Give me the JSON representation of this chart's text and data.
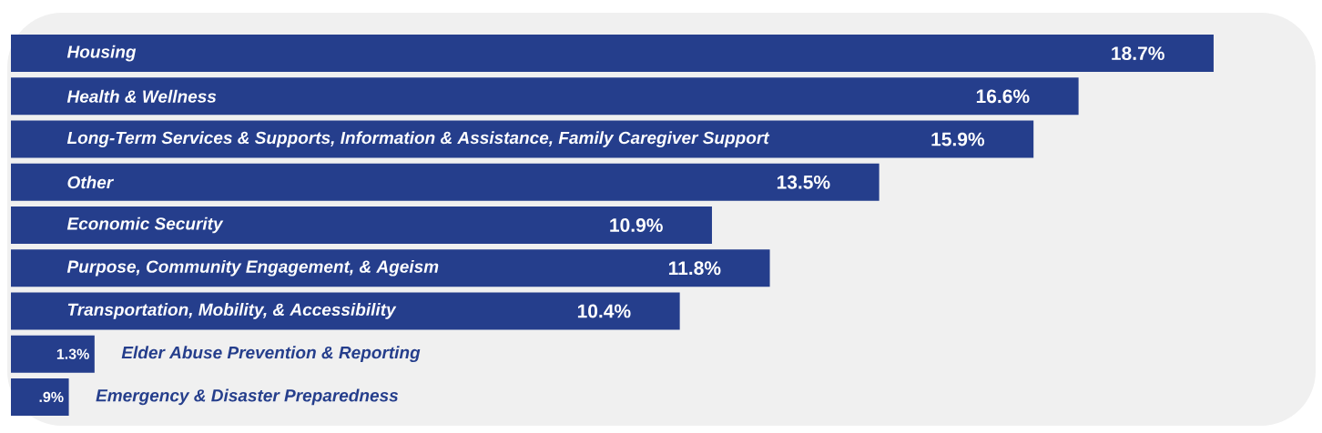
{
  "chart_data": {
    "type": "bar",
    "orientation": "horizontal",
    "categories": [
      "Housing",
      "Health & Wellness",
      "Long-Term Services & Supports, Information & Assistance, Family Caregiver Support",
      "Other",
      "Economic Security",
      "Purpose, Community Engagement, & Ageism",
      "Transportation, Mobility, & Accessibility",
      "Elder Abuse Prevention & Reporting",
      "Emergency & Disaster Preparedness"
    ],
    "values": [
      18.7,
      16.6,
      15.9,
      13.5,
      10.9,
      11.8,
      10.4,
      1.3,
      0.9
    ],
    "value_labels": [
      "18.7%",
      "16.6%",
      "15.9%",
      "13.5%",
      "10.9%",
      "11.8%",
      "10.4%",
      "1.3%",
      ".9%"
    ],
    "color": "#253e8c"
  }
}
